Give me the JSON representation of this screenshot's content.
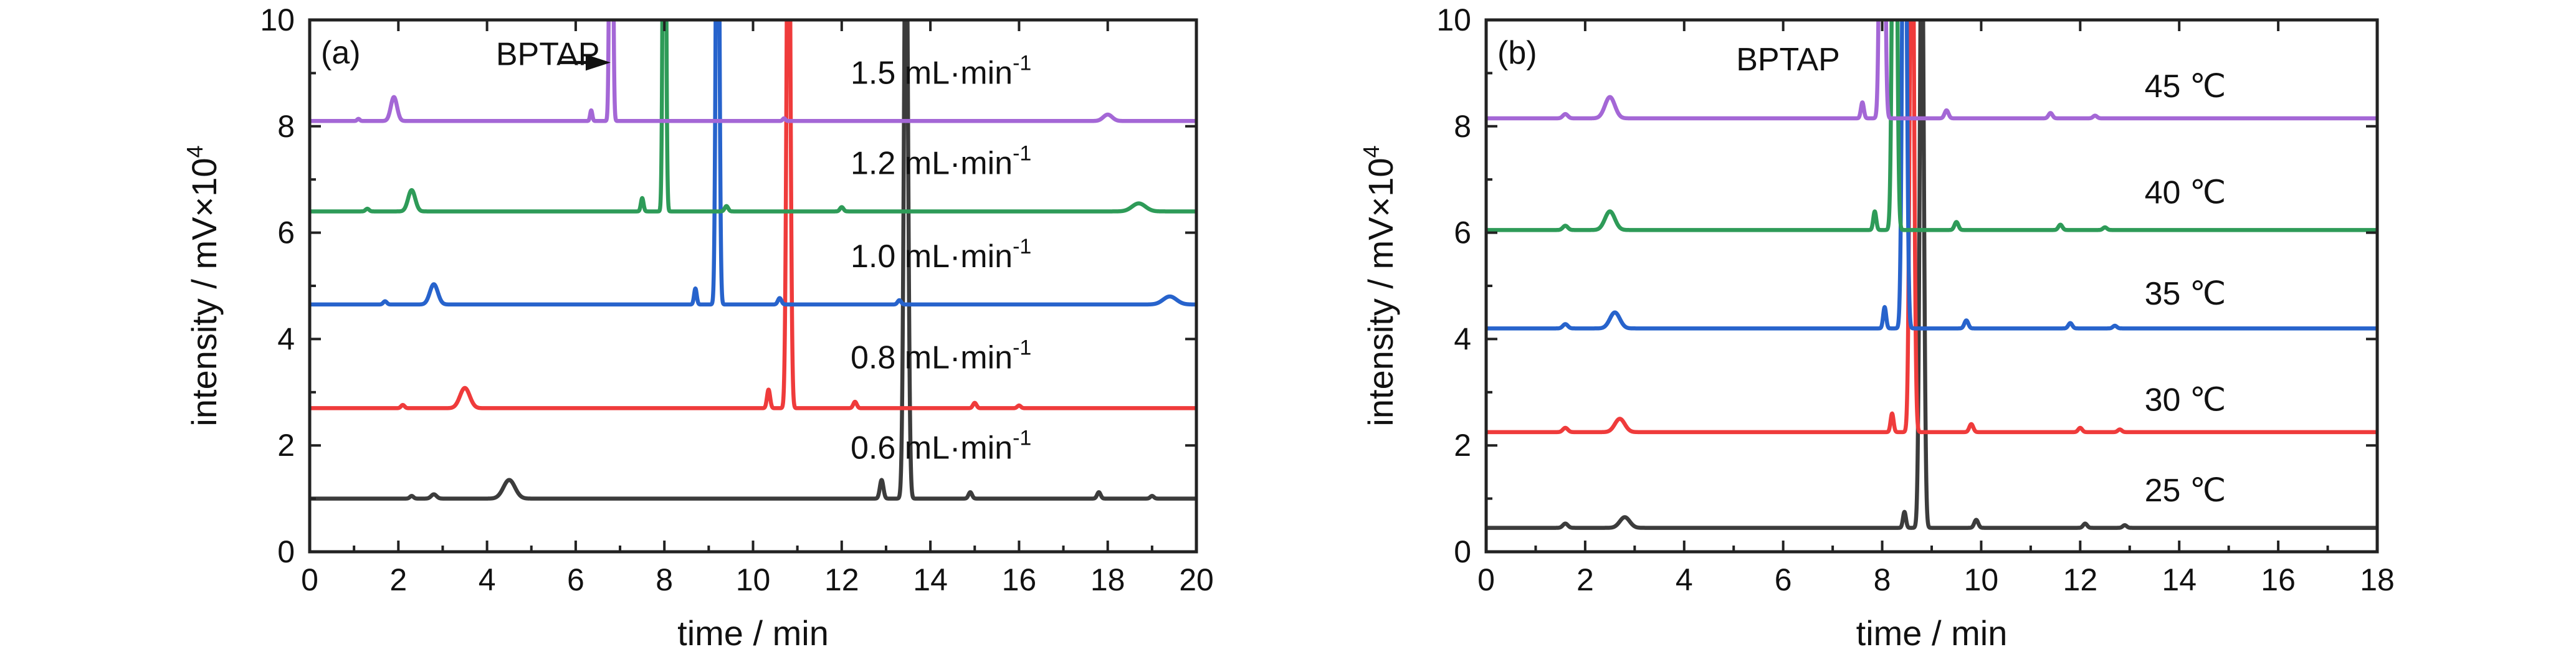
{
  "chart_data": [
    {
      "type": "line",
      "panel_label": "(a)",
      "xlabel": "time / min",
      "ylabel": "intensity / mV×10",
      "ylabel_exponent": "4",
      "xlim": [
        0,
        20
      ],
      "ylim": [
        0,
        10
      ],
      "xticks": [
        "0",
        "2",
        "4",
        "6",
        "8",
        "10",
        "12",
        "14",
        "16",
        "18",
        "20"
      ],
      "yticks": [
        "0",
        "2",
        "4",
        "6",
        "8",
        "10"
      ],
      "annotation": "BPTAP",
      "annotation_target": {
        "x": 6.9,
        "y": 9.2
      },
      "series": [
        {
          "name": "0.6 mL·min",
          "unit_exponent": "-1",
          "color": "#3c3c3c",
          "baseline": 1.0,
          "label_at": [
            12.2,
            1.75
          ],
          "peaks": [
            [
              2.3,
              0.05,
              0.04
            ],
            [
              2.8,
              0.08,
              0.06
            ],
            [
              4.5,
              0.35,
              0.13
            ],
            [
              12.9,
              0.35,
              0.04
            ],
            [
              13.45,
              12.0,
              0.045
            ],
            [
              14.9,
              0.12,
              0.04
            ],
            [
              17.8,
              0.12,
              0.04
            ],
            [
              19.0,
              0.05,
              0.04
            ]
          ]
        },
        {
          "name": "0.8 mL·min",
          "unit_exponent": "-1",
          "color": "#ef3b3b",
          "baseline": 2.7,
          "label_at": [
            12.2,
            3.45
          ],
          "peaks": [
            [
              2.1,
              0.06,
              0.04
            ],
            [
              3.5,
              0.38,
              0.11
            ],
            [
              10.35,
              0.35,
              0.035
            ],
            [
              10.8,
              12.0,
              0.04
            ],
            [
              12.3,
              0.12,
              0.04
            ],
            [
              15.0,
              0.1,
              0.04
            ],
            [
              16.0,
              0.05,
              0.04
            ]
          ]
        },
        {
          "name": "1.0 mL·min",
          "unit_exponent": "-1",
          "color": "#2763cc",
          "baseline": 4.65,
          "label_at": [
            12.2,
            5.35
          ],
          "peaks": [
            [
              1.7,
              0.06,
              0.04
            ],
            [
              2.8,
              0.38,
              0.09
            ],
            [
              8.7,
              0.3,
              0.03
            ],
            [
              9.2,
              12.0,
              0.035
            ],
            [
              10.6,
              0.12,
              0.04
            ],
            [
              13.3,
              0.08,
              0.04
            ],
            [
              19.4,
              0.15,
              0.15
            ]
          ]
        },
        {
          "name": "1.2 mL·min",
          "unit_exponent": "-1",
          "color": "#2e9b58",
          "baseline": 6.4,
          "label_at": [
            12.2,
            7.1
          ],
          "peaks": [
            [
              1.3,
              0.05,
              0.04
            ],
            [
              2.3,
              0.4,
              0.08
            ],
            [
              7.5,
              0.25,
              0.03
            ],
            [
              8.0,
              12.0,
              0.03
            ],
            [
              9.4,
              0.1,
              0.04
            ],
            [
              12.0,
              0.08,
              0.04
            ],
            [
              18.7,
              0.15,
              0.15
            ]
          ]
        },
        {
          "name": "1.5 mL·min",
          "unit_exponent": "-1",
          "color": "#a467d6",
          "baseline": 8.1,
          "label_at": [
            12.2,
            8.8
          ],
          "peaks": [
            [
              1.1,
              0.04,
              0.03
            ],
            [
              1.9,
              0.45,
              0.07
            ],
            [
              6.35,
              0.2,
              0.025
            ],
            [
              6.8,
              12.0,
              0.03
            ],
            [
              10.7,
              0.05,
              0.03
            ],
            [
              18.0,
              0.12,
              0.1
            ]
          ]
        }
      ]
    },
    {
      "type": "line",
      "panel_label": "(b)",
      "xlabel": "time / min",
      "ylabel": "intensity / mV×10",
      "ylabel_exponent": "4",
      "xlim": [
        0,
        18
      ],
      "ylim": [
        0,
        10
      ],
      "xticks": [
        "0",
        "2",
        "4",
        "6",
        "8",
        "10",
        "12",
        "14",
        "16",
        "18"
      ],
      "yticks": [
        "0",
        "2",
        "4",
        "6",
        "8",
        "10"
      ],
      "annotation": "BPTAP",
      "series": [
        {
          "name": "25 ℃",
          "color": "#3c3c3c",
          "baseline": 0.45,
          "label_at": [
            13.3,
            0.95
          ],
          "peaks": [
            [
              1.6,
              0.08,
              0.05
            ],
            [
              2.8,
              0.2,
              0.1
            ],
            [
              8.45,
              0.3,
              0.03
            ],
            [
              8.8,
              12.0,
              0.04
            ],
            [
              9.9,
              0.15,
              0.04
            ],
            [
              12.1,
              0.08,
              0.04
            ],
            [
              12.9,
              0.05,
              0.04
            ]
          ]
        },
        {
          "name": "30 ℃",
          "color": "#ef3b3b",
          "baseline": 2.25,
          "label_at": [
            13.3,
            2.65
          ],
          "peaks": [
            [
              1.6,
              0.08,
              0.05
            ],
            [
              2.7,
              0.25,
              0.1
            ],
            [
              8.2,
              0.35,
              0.03
            ],
            [
              8.6,
              12.0,
              0.04
            ],
            [
              9.8,
              0.15,
              0.04
            ],
            [
              12.0,
              0.08,
              0.04
            ],
            [
              12.8,
              0.05,
              0.04
            ]
          ]
        },
        {
          "name": "35 ℃",
          "color": "#2763cc",
          "baseline": 4.2,
          "label_at": [
            13.3,
            4.65
          ],
          "peaks": [
            [
              1.6,
              0.08,
              0.05
            ],
            [
              2.6,
              0.3,
              0.1
            ],
            [
              8.05,
              0.4,
              0.03
            ],
            [
              8.45,
              12.0,
              0.04
            ],
            [
              9.7,
              0.15,
              0.04
            ],
            [
              11.8,
              0.1,
              0.04
            ],
            [
              12.7,
              0.05,
              0.04
            ]
          ]
        },
        {
          "name": "40 ℃",
          "color": "#2e9b58",
          "baseline": 6.05,
          "label_at": [
            13.3,
            6.55
          ],
          "peaks": [
            [
              1.6,
              0.08,
              0.05
            ],
            [
              2.5,
              0.35,
              0.1
            ],
            [
              7.85,
              0.35,
              0.03
            ],
            [
              8.25,
              12.0,
              0.04
            ],
            [
              9.5,
              0.15,
              0.04
            ],
            [
              11.6,
              0.1,
              0.04
            ],
            [
              12.5,
              0.05,
              0.04
            ]
          ]
        },
        {
          "name": "45 ℃",
          "color": "#a467d6",
          "baseline": 8.15,
          "label_at": [
            13.3,
            8.55
          ],
          "peaks": [
            [
              1.6,
              0.08,
              0.05
            ],
            [
              2.5,
              0.4,
              0.1
            ],
            [
              7.6,
              0.3,
              0.03
            ],
            [
              8.0,
              12.0,
              0.04
            ],
            [
              9.3,
              0.15,
              0.04
            ],
            [
              11.4,
              0.1,
              0.04
            ],
            [
              12.3,
              0.05,
              0.04
            ]
          ]
        }
      ]
    }
  ]
}
